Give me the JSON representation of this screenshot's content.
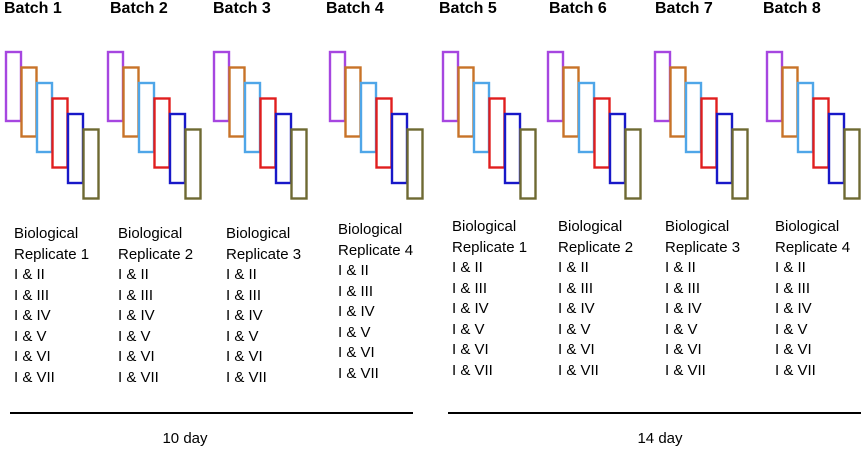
{
  "batches": [
    {
      "title": "Batch 1",
      "label_line1": "Biological",
      "label_line2": "Replicate 1",
      "pairs": [
        "I & II",
        "I & III",
        "I & IV",
        "I & V",
        "I & VI",
        "I & VII"
      ]
    },
    {
      "title": "Batch 2",
      "label_line1": "Biological",
      "label_line2": "Replicate 2",
      "pairs": [
        "I & II",
        "I & III",
        "I & IV",
        "I & V",
        "I & VI",
        "I & VII"
      ]
    },
    {
      "title": "Batch 3",
      "label_line1": "Biological",
      "label_line2": "Replicate 3",
      "pairs": [
        "I & II",
        "I & III",
        "I & IV",
        "I & V",
        "I & VI",
        "I & VII"
      ]
    },
    {
      "title": "Batch 4",
      "label_line1": "Biological",
      "label_line2": "Replicate 4",
      "pairs": [
        "I & II",
        "I & III",
        "I & IV",
        "I & V",
        "I & VI",
        "I & VII"
      ]
    },
    {
      "title": "Batch 5",
      "label_line1": "Biological",
      "label_line2": "Replicate 1",
      "pairs": [
        "I & II",
        "I & III",
        "I & IV",
        "I & V",
        "I & VI",
        "I & VII"
      ]
    },
    {
      "title": "Batch 6",
      "label_line1": "Biological",
      "label_line2": "Replicate 2",
      "pairs": [
        "I & II",
        "I & III",
        "I & IV",
        "I & V",
        "I & VI",
        "I & VII"
      ]
    },
    {
      "title": "Batch 7",
      "label_line1": "Biological",
      "label_line2": "Replicate 3",
      "pairs": [
        "I & II",
        "I & III",
        "I & IV",
        "I & V",
        "I & VI",
        "I & VII"
      ]
    },
    {
      "title": "Batch 8",
      "label_line1": "Biological",
      "label_line2": "Replicate 4",
      "pairs": [
        "I & II",
        "I & III",
        "I & IV",
        "I & V",
        "I & VI",
        "I & VII"
      ]
    }
  ],
  "sample_colors": [
    "#a646e0",
    "#c87328",
    "#4fa6e8",
    "#e01e1e",
    "#1818c8",
    "#6e6a32"
  ],
  "periods": [
    {
      "label": "10 day"
    },
    {
      "label": "14 day"
    }
  ]
}
